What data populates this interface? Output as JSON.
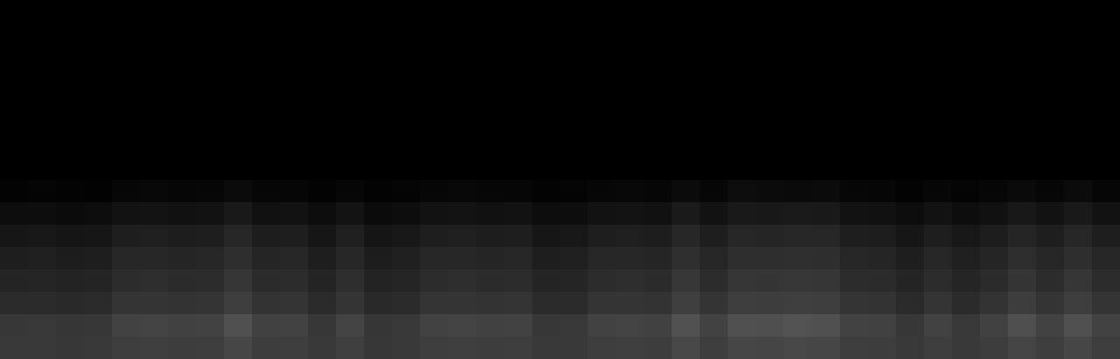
{
  "chart_data": {
    "type": "heatmap",
    "tick_labels": false,
    "color_range": [
      0,
      255
    ],
    "cells": [
      [
        0,
        0,
        0,
        0,
        0,
        0,
        0,
        0,
        0,
        0,
        0,
        0,
        0,
        0,
        0,
        0,
        0,
        0,
        0,
        0,
        0,
        0,
        0,
        0,
        0,
        0,
        0,
        0,
        0,
        0,
        0,
        0,
        0,
        0,
        0,
        0,
        0,
        0,
        0,
        0
      ],
      [
        0,
        0,
        0,
        0,
        0,
        0,
        0,
        0,
        0,
        0,
        0,
        0,
        0,
        0,
        0,
        0,
        0,
        0,
        0,
        0,
        0,
        0,
        0,
        0,
        0,
        0,
        0,
        0,
        0,
        0,
        0,
        0,
        0,
        0,
        0,
        0,
        0,
        0,
        0,
        0
      ],
      [
        0,
        0,
        0,
        0,
        0,
        0,
        0,
        0,
        0,
        0,
        0,
        0,
        0,
        0,
        0,
        0,
        0,
        0,
        0,
        0,
        0,
        0,
        0,
        0,
        0,
        0,
        0,
        0,
        0,
        0,
        0,
        0,
        0,
        0,
        0,
        0,
        0,
        0,
        0,
        0
      ],
      [
        0,
        0,
        0,
        0,
        0,
        0,
        0,
        0,
        0,
        0,
        0,
        0,
        0,
        0,
        0,
        0,
        0,
        0,
        0,
        0,
        0,
        0,
        0,
        0,
        0,
        0,
        0,
        0,
        0,
        0,
        0,
        0,
        0,
        0,
        0,
        0,
        0,
        0,
        0,
        0
      ],
      [
        0,
        0,
        0,
        0,
        0,
        0,
        0,
        0,
        0,
        0,
        0,
        0,
        0,
        0,
        0,
        0,
        0,
        0,
        0,
        0,
        0,
        0,
        0,
        0,
        0,
        0,
        0,
        0,
        0,
        0,
        0,
        0,
        0,
        0,
        0,
        0,
        0,
        0,
        0,
        0
      ],
      [
        0,
        0,
        0,
        0,
        0,
        0,
        0,
        0,
        0,
        0,
        0,
        0,
        0,
        0,
        0,
        0,
        0,
        0,
        0,
        0,
        0,
        0,
        0,
        0,
        0,
        0,
        0,
        0,
        0,
        0,
        0,
        0,
        0,
        0,
        0,
        0,
        0,
        0,
        0,
        0
      ],
      [
        0,
        0,
        0,
        0,
        0,
        0,
        0,
        0,
        0,
        0,
        0,
        0,
        0,
        0,
        0,
        0,
        0,
        0,
        0,
        0,
        0,
        0,
        0,
        0,
        0,
        0,
        0,
        0,
        0,
        0,
        0,
        0,
        0,
        0,
        0,
        0,
        0,
        0,
        0,
        0
      ],
      [
        0,
        0,
        0,
        0,
        0,
        0,
        0,
        0,
        0,
        0,
        0,
        0,
        0,
        0,
        0,
        0,
        0,
        0,
        0,
        0,
        0,
        0,
        0,
        0,
        0,
        0,
        0,
        0,
        0,
        0,
        0,
        0,
        0,
        0,
        0,
        0,
        0,
        0,
        0,
        0
      ],
      [
        3,
        4,
        3,
        2,
        7,
        8,
        6,
        7,
        11,
        7,
        6,
        3,
        7,
        3,
        4,
        7,
        8,
        7,
        6,
        3,
        4,
        7,
        8,
        6,
        11,
        7,
        12,
        11,
        10,
        11,
        7,
        6,
        3,
        7,
        4,
        7,
        10,
        7,
        11,
        6
      ],
      [
        12,
        13,
        11,
        12,
        18,
        19,
        17,
        18,
        25,
        17,
        18,
        12,
        19,
        11,
        13,
        18,
        19,
        17,
        18,
        12,
        13,
        18,
        19,
        17,
        26,
        18,
        25,
        24,
        26,
        25,
        18,
        17,
        12,
        18,
        13,
        17,
        24,
        18,
        25,
        18
      ],
      [
        22,
        23,
        21,
        22,
        30,
        31,
        29,
        30,
        38,
        29,
        30,
        22,
        31,
        21,
        23,
        30,
        31,
        29,
        30,
        22,
        23,
        30,
        31,
        29,
        39,
        30,
        38,
        37,
        39,
        38,
        30,
        29,
        22,
        30,
        23,
        29,
        37,
        30,
        38,
        30
      ],
      [
        30,
        31,
        29,
        30,
        38,
        39,
        37,
        38,
        46,
        37,
        38,
        30,
        39,
        29,
        31,
        38,
        39,
        37,
        38,
        30,
        31,
        38,
        39,
        37,
        47,
        38,
        46,
        45,
        47,
        46,
        38,
        37,
        30,
        38,
        31,
        37,
        45,
        38,
        46,
        38
      ],
      [
        36,
        37,
        35,
        36,
        44,
        45,
        43,
        44,
        54,
        43,
        44,
        36,
        45,
        35,
        37,
        44,
        45,
        43,
        44,
        36,
        37,
        44,
        45,
        43,
        55,
        44,
        54,
        53,
        55,
        54,
        44,
        43,
        36,
        44,
        37,
        43,
        53,
        44,
        54,
        44
      ],
      [
        42,
        43,
        41,
        42,
        52,
        53,
        51,
        52,
        62,
        51,
        52,
        42,
        53,
        41,
        43,
        52,
        53,
        51,
        52,
        42,
        43,
        52,
        53,
        51,
        63,
        52,
        62,
        61,
        63,
        62,
        52,
        51,
        42,
        52,
        43,
        51,
        61,
        52,
        62,
        52
      ],
      [
        55,
        56,
        54,
        55,
        66,
        67,
        65,
        66,
        80,
        65,
        66,
        55,
        67,
        54,
        56,
        66,
        67,
        65,
        66,
        55,
        56,
        66,
        67,
        65,
        81,
        66,
        80,
        79,
        82,
        80,
        66,
        65,
        55,
        66,
        56,
        65,
        79,
        66,
        80,
        66
      ],
      [
        56,
        57,
        55,
        56,
        62,
        63,
        61,
        62,
        70,
        61,
        62,
        56,
        63,
        55,
        57,
        62,
        63,
        61,
        62,
        56,
        57,
        62,
        63,
        61,
        71,
        62,
        70,
        69,
        71,
        70,
        62,
        61,
        56,
        62,
        57,
        61,
        69,
        62,
        70,
        62
      ]
    ]
  }
}
